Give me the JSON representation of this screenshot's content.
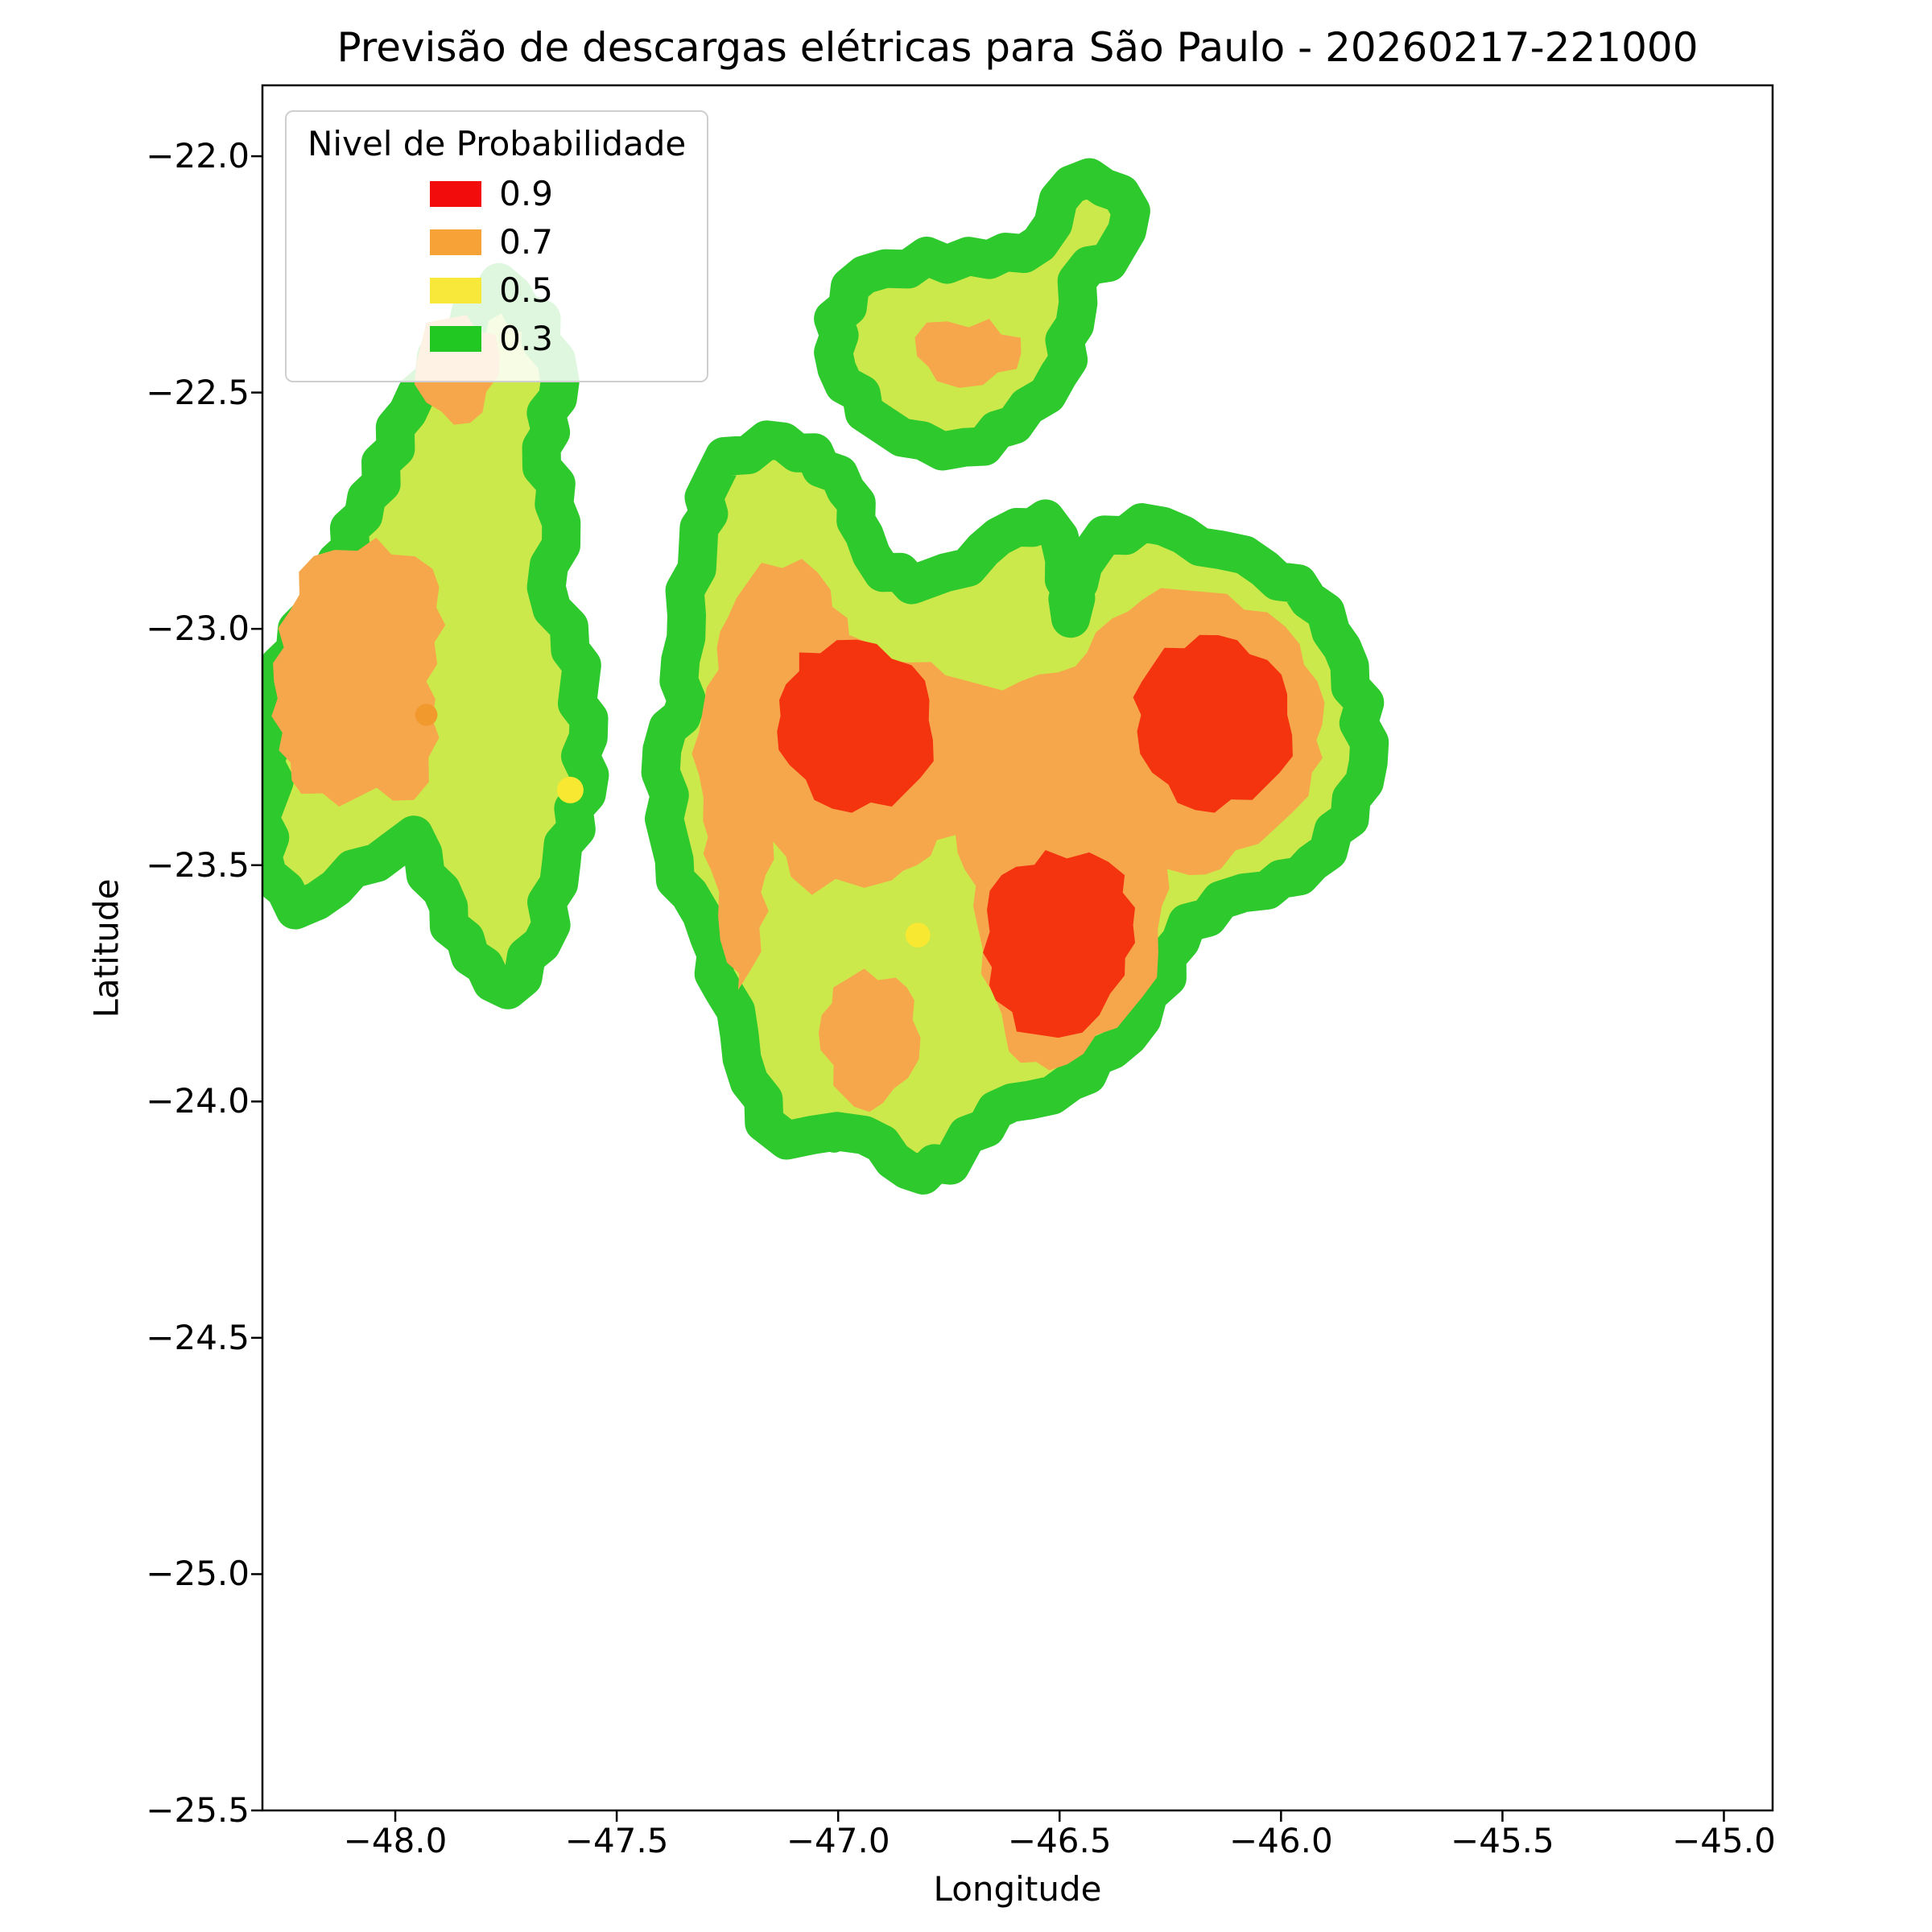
{
  "chart_data": {
    "type": "filled-contour-map",
    "title": "Previsão de descargas elétricas para São Paulo - 20260217-221000",
    "axes": {
      "xlabel": "Longitude",
      "ylabel": "Latitude",
      "xlim": [
        -48.3,
        -44.89
      ],
      "ylim": [
        -25.5,
        -21.85
      ],
      "grid": false,
      "xticks": [
        {
          "value": -48.0,
          "label": "−48.0"
        },
        {
          "value": -47.5,
          "label": "−47.5"
        },
        {
          "value": -47.0,
          "label": "−47.0"
        },
        {
          "value": -46.5,
          "label": "−46.5"
        },
        {
          "value": -46.0,
          "label": "−46.0"
        },
        {
          "value": -45.5,
          "label": "−45.5"
        },
        {
          "value": -45.0,
          "label": "−45.0"
        }
      ],
      "yticks": [
        {
          "value": -22.0,
          "label": "−22.0"
        },
        {
          "value": -22.5,
          "label": "−22.5"
        },
        {
          "value": -23.0,
          "label": "−23.0"
        },
        {
          "value": -23.5,
          "label": "−23.5"
        },
        {
          "value": -24.0,
          "label": "−24.0"
        },
        {
          "value": -24.5,
          "label": "−24.5"
        },
        {
          "value": -25.0,
          "label": "−25.0"
        },
        {
          "value": -25.5,
          "label": "−25.5"
        }
      ]
    },
    "legend": {
      "title": "Nivel de Probabilidade",
      "position": "upper left",
      "entries": [
        {
          "label": "0.9",
          "level": 0.9,
          "color": "#f20c0c"
        },
        {
          "label": "0.7",
          "level": 0.7,
          "color": "#f7a237"
        },
        {
          "label": "0.5",
          "level": 0.5,
          "color": "#f8e839"
        },
        {
          "label": "0.3",
          "level": 0.3,
          "color": "#22c822"
        }
      ]
    },
    "map_colors": {
      "0.3": "#2dc92d",
      "0.5": "#cbe94b",
      "0.7": "#f7a74b",
      "0.9": "#f4330f",
      "dot_yellow": "#f8e832",
      "dot_orange": "#f2992e"
    },
    "blobs": [
      {
        "name": "west-arc",
        "outer_level": 0.3,
        "inner_level": 0.5,
        "points": [
          [
            -47.766,
            -22.267
          ],
          [
            -47.67,
            -22.344
          ],
          [
            -47.628,
            -22.476
          ],
          [
            -47.67,
            -22.616
          ],
          [
            -47.625,
            -22.775
          ],
          [
            -47.659,
            -22.912
          ],
          [
            -47.605,
            -23.045
          ],
          [
            -47.563,
            -23.19
          ],
          [
            -47.568,
            -23.349
          ],
          [
            -47.625,
            -23.495
          ],
          [
            -47.67,
            -23.667
          ],
          [
            -47.746,
            -23.764
          ],
          [
            -47.831,
            -23.693
          ],
          [
            -47.896,
            -23.553
          ],
          [
            -47.958,
            -23.436
          ],
          [
            -48.042,
            -23.495
          ],
          [
            -48.133,
            -23.547
          ],
          [
            -48.226,
            -23.595
          ],
          [
            -48.288,
            -23.521
          ],
          [
            -48.291,
            -23.164
          ],
          [
            -48.226,
            -23.045
          ],
          [
            -48.15,
            -22.891
          ],
          [
            -48.065,
            -22.722
          ],
          [
            -47.972,
            -22.542
          ],
          [
            -47.873,
            -22.389
          ]
        ]
      },
      {
        "name": "north-blob",
        "outer_level": 0.3,
        "inner_level": 0.5,
        "points": [
          [
            -46.941,
            -22.251
          ],
          [
            -46.8,
            -22.211
          ],
          [
            -46.659,
            -22.219
          ],
          [
            -46.546,
            -22.185
          ],
          [
            -46.503,
            -22.092
          ],
          [
            -46.433,
            -22.045
          ],
          [
            -46.362,
            -22.079
          ],
          [
            -46.348,
            -22.158
          ],
          [
            -46.39,
            -22.225
          ],
          [
            -46.461,
            -22.264
          ],
          [
            -46.466,
            -22.357
          ],
          [
            -46.503,
            -22.463
          ],
          [
            -46.602,
            -22.568
          ],
          [
            -46.715,
            -22.616
          ],
          [
            -46.856,
            -22.595
          ],
          [
            -46.941,
            -22.542
          ],
          [
            -47.003,
            -22.45
          ],
          [
            -47.011,
            -22.344
          ]
        ]
      },
      {
        "name": "central-complex",
        "outer_level": 0.3,
        "inner_level": 0.5,
        "points": [
          [
            -47.303,
            -22.722
          ],
          [
            -47.257,
            -22.635
          ],
          [
            -47.161,
            -22.6
          ],
          [
            -47.054,
            -22.627
          ],
          [
            -46.983,
            -22.706
          ],
          [
            -46.941,
            -22.801
          ],
          [
            -46.899,
            -22.881
          ],
          [
            -46.834,
            -22.907
          ],
          [
            -46.758,
            -22.881
          ],
          [
            -46.673,
            -22.833
          ],
          [
            -46.597,
            -22.785
          ],
          [
            -46.532,
            -22.767
          ],
          [
            -46.489,
            -22.854
          ],
          [
            -46.475,
            -22.978
          ],
          [
            -46.447,
            -22.865
          ],
          [
            -46.399,
            -22.801
          ],
          [
            -46.314,
            -22.775
          ],
          [
            -46.221,
            -22.801
          ],
          [
            -46.136,
            -22.833
          ],
          [
            -46.037,
            -22.873
          ],
          [
            -45.938,
            -22.939
          ],
          [
            -45.862,
            -23.04
          ],
          [
            -45.811,
            -23.156
          ],
          [
            -45.803,
            -23.283
          ],
          [
            -45.845,
            -23.402
          ],
          [
            -45.93,
            -23.495
          ],
          [
            -46.031,
            -23.553
          ],
          [
            -46.136,
            -23.574
          ],
          [
            -46.212,
            -23.622
          ],
          [
            -46.257,
            -23.738
          ],
          [
            -46.314,
            -23.825
          ],
          [
            -46.381,
            -23.891
          ],
          [
            -46.475,
            -23.958
          ],
          [
            -46.568,
            -23.997
          ],
          [
            -46.644,
            -24.018
          ],
          [
            -46.709,
            -24.071
          ],
          [
            -46.746,
            -24.135
          ],
          [
            -46.808,
            -24.156
          ],
          [
            -46.876,
            -24.124
          ],
          [
            -46.941,
            -24.071
          ],
          [
            -47.003,
            -24.063
          ],
          [
            -47.059,
            -24.071
          ],
          [
            -47.116,
            -24.082
          ],
          [
            -47.167,
            -24.045
          ],
          [
            -47.201,
            -23.958
          ],
          [
            -47.223,
            -23.859
          ],
          [
            -47.26,
            -23.764
          ],
          [
            -47.291,
            -23.653
          ],
          [
            -47.336,
            -23.561
          ],
          [
            -47.37,
            -23.489
          ],
          [
            -47.393,
            -23.402
          ],
          [
            -47.401,
            -23.304
          ],
          [
            -47.384,
            -23.209
          ],
          [
            -47.342,
            -23.151
          ],
          [
            -47.356,
            -23.066
          ],
          [
            -47.342,
            -22.971
          ],
          [
            -47.319,
            -22.873
          ],
          [
            -47.314,
            -22.786
          ]
        ]
      }
    ],
    "patches": [
      {
        "name": "west-orange",
        "level": 0.7,
        "points": [
          [
            -48.184,
            -22.846
          ],
          [
            -48.043,
            -22.807
          ],
          [
            -47.916,
            -22.873
          ],
          [
            -47.887,
            -22.992
          ],
          [
            -47.93,
            -23.111
          ],
          [
            -47.901,
            -23.23
          ],
          [
            -47.958,
            -23.362
          ],
          [
            -48.042,
            -23.336
          ],
          [
            -48.127,
            -23.376
          ],
          [
            -48.212,
            -23.349
          ],
          [
            -48.263,
            -23.257
          ],
          [
            -48.274,
            -23.111
          ],
          [
            -48.24,
            -22.965
          ]
        ]
      },
      {
        "name": "northwest-orange-patch",
        "level": 0.7,
        "points": [
          [
            -47.93,
            -22.352
          ],
          [
            -47.839,
            -22.336
          ],
          [
            -47.774,
            -22.378
          ],
          [
            -47.766,
            -22.463
          ],
          [
            -47.803,
            -22.542
          ],
          [
            -47.868,
            -22.568
          ],
          [
            -47.93,
            -22.521
          ],
          [
            -47.952,
            -22.436
          ]
        ]
      },
      {
        "name": "north-blob-orange-core",
        "level": 0.7,
        "points": [
          [
            -46.8,
            -22.352
          ],
          [
            -46.659,
            -22.344
          ],
          [
            -46.588,
            -22.384
          ],
          [
            -46.597,
            -22.45
          ],
          [
            -46.673,
            -22.484
          ],
          [
            -46.777,
            -22.476
          ],
          [
            -46.822,
            -22.423
          ]
        ]
      },
      {
        "name": "central-orange-mass",
        "level": 0.7,
        "points": [
          [
            -47.229,
            -22.934
          ],
          [
            -47.173,
            -22.86
          ],
          [
            -47.082,
            -22.852
          ],
          [
            -47.017,
            -22.918
          ],
          [
            -46.975,
            -23.013
          ],
          [
            -46.913,
            -23.058
          ],
          [
            -46.834,
            -23.071
          ],
          [
            -46.758,
            -23.098
          ],
          [
            -46.673,
            -23.119
          ],
          [
            -46.588,
            -23.111
          ],
          [
            -46.503,
            -23.092
          ],
          [
            -46.438,
            -23.05
          ],
          [
            -46.381,
            -22.978
          ],
          [
            -46.314,
            -22.939
          ],
          [
            -46.221,
            -22.918
          ],
          [
            -46.122,
            -22.926
          ],
          [
            -46.031,
            -22.965
          ],
          [
            -45.958,
            -23.032
          ],
          [
            -45.918,
            -23.111
          ],
          [
            -45.907,
            -23.203
          ],
          [
            -45.93,
            -23.304
          ],
          [
            -45.975,
            -23.389
          ],
          [
            -46.051,
            -23.455
          ],
          [
            -46.136,
            -23.508
          ],
          [
            -46.207,
            -23.521
          ],
          [
            -46.257,
            -23.508
          ],
          [
            -46.269,
            -23.587
          ],
          [
            -46.277,
            -23.685
          ],
          [
            -46.314,
            -23.78
          ],
          [
            -46.37,
            -23.844
          ],
          [
            -46.446,
            -23.899
          ],
          [
            -46.523,
            -23.934
          ],
          [
            -46.588,
            -23.918
          ],
          [
            -46.622,
            -23.86
          ],
          [
            -46.65,
            -23.772
          ],
          [
            -46.673,
            -23.68
          ],
          [
            -46.695,
            -23.587
          ],
          [
            -46.715,
            -23.508
          ],
          [
            -46.735,
            -23.436
          ],
          [
            -46.777,
            -23.447
          ],
          [
            -46.822,
            -23.5
          ],
          [
            -46.879,
            -23.532
          ],
          [
            -46.941,
            -23.548
          ],
          [
            -47.006,
            -23.529
          ],
          [
            -47.059,
            -23.563
          ],
          [
            -47.107,
            -23.524
          ],
          [
            -47.147,
            -23.45
          ],
          [
            -47.164,
            -23.521
          ],
          [
            -47.178,
            -23.632
          ],
          [
            -47.201,
            -23.727
          ],
          [
            -47.226,
            -23.764
          ],
          [
            -47.251,
            -23.706
          ],
          [
            -47.271,
            -23.608
          ],
          [
            -47.288,
            -23.508
          ],
          [
            -47.305,
            -23.407
          ],
          [
            -47.314,
            -23.309
          ],
          [
            -47.314,
            -23.219
          ],
          [
            -47.297,
            -23.124
          ],
          [
            -47.274,
            -23.04
          ],
          [
            -47.249,
            -22.976
          ]
        ]
      },
      {
        "name": "south-orange-patch",
        "level": 0.7,
        "points": [
          [
            -47.011,
            -23.759
          ],
          [
            -46.941,
            -23.719
          ],
          [
            -46.87,
            -23.738
          ],
          [
            -46.828,
            -23.786
          ],
          [
            -46.814,
            -23.865
          ],
          [
            -46.842,
            -23.95
          ],
          [
            -46.899,
            -24.003
          ],
          [
            -46.964,
            -24.011
          ],
          [
            -47.011,
            -23.966
          ],
          [
            -47.04,
            -23.891
          ],
          [
            -47.037,
            -23.817
          ]
        ]
      },
      {
        "name": "red-core-west",
        "level": 0.9,
        "points": [
          [
            -47.133,
            -23.151
          ],
          [
            -47.088,
            -23.05
          ],
          [
            -47.003,
            -23.024
          ],
          [
            -46.913,
            -23.032
          ],
          [
            -46.834,
            -23.077
          ],
          [
            -46.794,
            -23.151
          ],
          [
            -46.786,
            -23.235
          ],
          [
            -46.814,
            -23.315
          ],
          [
            -46.879,
            -23.376
          ],
          [
            -46.969,
            -23.389
          ],
          [
            -47.054,
            -23.362
          ],
          [
            -47.11,
            -23.288
          ],
          [
            -47.138,
            -23.217
          ]
        ]
      },
      {
        "name": "red-core-east",
        "level": 0.9,
        "points": [
          [
            -46.314,
            -23.111
          ],
          [
            -46.263,
            -23.04
          ],
          [
            -46.184,
            -23.013
          ],
          [
            -46.099,
            -23.024
          ],
          [
            -46.031,
            -23.066
          ],
          [
            -45.986,
            -23.138
          ],
          [
            -45.975,
            -23.225
          ],
          [
            -46.003,
            -23.304
          ],
          [
            -46.065,
            -23.362
          ],
          [
            -46.15,
            -23.389
          ],
          [
            -46.234,
            -23.368
          ],
          [
            -46.291,
            -23.304
          ],
          [
            -46.325,
            -23.217
          ]
        ]
      },
      {
        "name": "red-core-south",
        "level": 0.9,
        "points": [
          [
            -46.631,
            -23.521
          ],
          [
            -46.532,
            -23.468
          ],
          [
            -46.433,
            -23.473
          ],
          [
            -46.353,
            -23.521
          ],
          [
            -46.334,
            -23.627
          ],
          [
            -46.353,
            -23.733
          ],
          [
            -46.41,
            -23.817
          ],
          [
            -46.503,
            -23.865
          ],
          [
            -46.597,
            -23.852
          ],
          [
            -46.644,
            -23.786
          ],
          [
            -46.673,
            -23.685
          ],
          [
            -46.664,
            -23.595
          ]
        ]
      }
    ],
    "dots": [
      {
        "name": "yellow-dot-west",
        "color": "dot_yellow",
        "lon": -47.605,
        "lat": -23.341,
        "r_deg": 0.03
      },
      {
        "name": "yellow-dot-central",
        "color": "dot_yellow",
        "lon": -46.82,
        "lat": -23.648,
        "r_deg": 0.028
      },
      {
        "name": "orange-dot-west",
        "color": "dot_orange",
        "lon": -47.93,
        "lat": -23.182,
        "r_deg": 0.025
      },
      {
        "name": "green-dot-south",
        "color": "0.3",
        "lon": -47.009,
        "lat": -24.082,
        "r_deg": 0.028
      }
    ]
  }
}
